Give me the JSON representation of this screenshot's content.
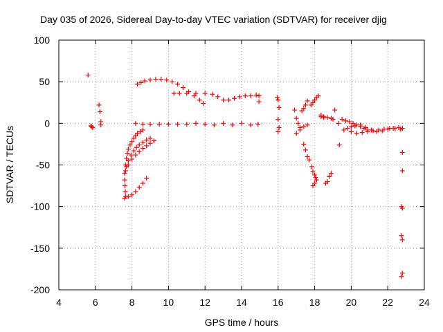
{
  "chart_data": {
    "type": "scatter",
    "title": "Day 035 of 2026, Sidereal Day-to-day VTEC variation (SDTVAR) for receiver djig",
    "xlabel": "GPS time / hours",
    "ylabel": "SDTVAR / TECUs",
    "xlim": [
      4,
      24
    ],
    "ylim": [
      -200,
      100
    ],
    "xticks": [
      "4",
      "6",
      "8",
      "10",
      "12",
      "14",
      "16",
      "18",
      "20",
      "22",
      "24"
    ],
    "yticks": [
      "100",
      "50",
      "0",
      "-50",
      "-100",
      "-150",
      "-200"
    ],
    "grid": true,
    "marker": "plus",
    "color": "#ff0000",
    "series": [
      {
        "x": [
          5.6,
          5.75,
          5.8,
          5.85,
          6.2,
          6.25,
          6.3,
          6.3,
          8.3,
          8.5,
          8.7,
          9.0,
          9.3,
          9.6,
          9.9,
          10.2,
          10.5,
          10.8,
          11.1,
          11.4,
          11.7,
          11.9,
          10.3,
          10.6,
          11.0,
          11.5,
          12.0,
          12.4,
          12.7,
          13.0,
          13.3,
          13.6,
          13.9,
          14.2,
          14.5,
          14.8,
          14.95,
          8.2,
          8.6,
          9.0,
          9.5,
          10.0,
          10.5,
          11.0,
          11.5,
          12.0,
          12.5,
          13.0,
          13.5,
          14.0,
          14.5,
          14.9,
          7.65,
          7.7,
          7.75,
          7.8,
          7.9,
          8.0,
          8.1,
          8.2,
          8.3,
          8.45,
          8.6,
          7.7,
          7.8,
          7.95,
          8.1,
          8.25,
          8.4,
          8.6,
          8.8,
          9.0,
          7.65,
          7.8,
          8.0,
          8.2,
          8.4,
          8.6,
          8.8,
          9.0,
          9.2,
          7.6,
          7.6,
          7.62,
          7.64,
          7.66,
          7.6,
          7.8,
          8.0,
          8.2,
          8.4,
          8.6,
          8.8,
          14.95,
          15.95,
          16.0,
          16.05,
          16.0,
          16.05,
          16.0,
          16.9,
          17.0,
          17.1,
          17.2,
          17.0,
          17.2,
          17.4,
          17.6,
          17.3,
          17.4,
          17.5,
          17.6,
          17.4,
          17.5,
          17.6,
          17.7,
          17.85,
          17.9,
          18.0,
          18.05,
          17.8,
          17.9,
          18.0,
          18.1,
          18.2,
          18.35,
          18.5,
          18.6,
          18.7,
          18.8,
          18.9,
          17.9,
          18.0,
          18.1,
          18.35,
          18.5,
          18.7,
          18.9,
          19.0,
          19.1,
          19.3,
          19.35,
          19.5,
          19.7,
          19.9,
          20.1,
          20.3,
          20.5,
          20.7,
          20.9,
          19.6,
          19.8,
          20.0,
          20.2,
          20.5,
          20.8,
          21.1,
          21.4,
          21.7,
          22.0,
          22.3,
          22.6,
          22.8,
          20.0,
          20.3,
          20.6,
          20.9,
          21.2,
          21.5,
          21.8,
          22.1,
          22.4,
          22.7,
          22.8,
          22.8,
          22.75,
          22.8,
          22.75,
          22.8,
          22.8,
          22.75
        ],
        "y": [
          58,
          -3,
          -4,
          -5,
          22,
          14,
          2,
          -2,
          47,
          49,
          51,
          52,
          53,
          53,
          52,
          50,
          47,
          43,
          38,
          33,
          28,
          24,
          36,
          36,
          36,
          36,
          36,
          35,
          32,
          28,
          28,
          30,
          32,
          33,
          33,
          34,
          33,
          0,
          -1,
          -1,
          -1,
          -1,
          -1,
          -1,
          0,
          -1,
          -2,
          0,
          -2,
          0,
          -2,
          -1,
          -50,
          -42,
          -36,
          -31,
          -26,
          -22,
          -18,
          -15,
          -12,
          -10,
          -8,
          -52,
          -45,
          -38,
          -33,
          -29,
          -26,
          -23,
          -20,
          -18,
          -57,
          -50,
          -43,
          -38,
          -34,
          -30,
          -27,
          -24,
          -21,
          -60,
          -68,
          -75,
          -82,
          -88,
          -90,
          -88,
          -86,
          -82,
          -77,
          -72,
          -66,
          26,
          31,
          28,
          19,
          5,
          -5,
          -10,
          16,
          6,
          0,
          -5,
          -12,
          -8,
          -4,
          -2,
          15,
          18,
          22,
          27,
          -25,
          -32,
          -40,
          -44,
          -52,
          -58,
          -62,
          -65,
          22,
          25,
          28,
          31,
          33,
          8,
          7,
          -72,
          -70,
          -64,
          -60,
          -75,
          -72,
          -68,
          10,
          8,
          7,
          6,
          5,
          16,
          0,
          -26,
          5,
          3,
          2,
          0,
          -2,
          -4,
          -6,
          -8,
          -8,
          -6,
          -4,
          -3,
          -2,
          -5,
          -8,
          -10,
          -9,
          -7,
          -6,
          -5,
          -6,
          -10,
          -12,
          -11,
          -10,
          -9,
          -8,
          -7,
          -6,
          -6,
          -7,
          -35,
          -57,
          -100,
          -102,
          -135,
          -140,
          -180,
          -184
        ]
      }
    ]
  }
}
